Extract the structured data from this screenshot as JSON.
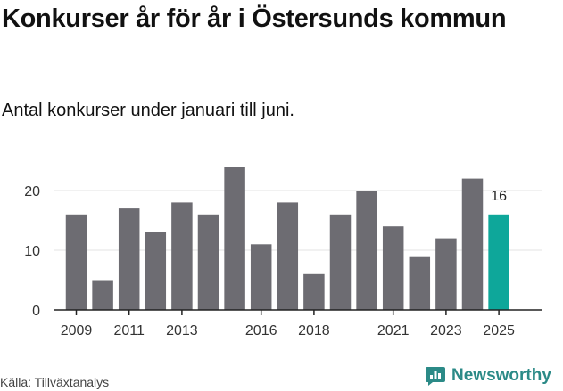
{
  "title": "Konkurser år för år i Östersunds kommun",
  "subtitle": "Antal konkurser under januari till juni.",
  "source": "Källa: Tillväxtanalys",
  "brand": "Newsworthy",
  "colors": {
    "bar": "#6d6c72",
    "highlight": "#0ea79a",
    "brand": "#2b8a87"
  },
  "chart_data": {
    "type": "bar",
    "categories": [
      "2009",
      "2010",
      "2011",
      "2012",
      "2013",
      "2014",
      "2015",
      "2016",
      "2017",
      "2018",
      "2019",
      "2020",
      "2021",
      "2022",
      "2023",
      "2024",
      "2025"
    ],
    "values": [
      16,
      5,
      17,
      13,
      18,
      16,
      24,
      11,
      18,
      6,
      16,
      20,
      14,
      9,
      12,
      22,
      16
    ],
    "highlight_category": "2025",
    "xtick_labels": [
      "2009",
      "2011",
      "2013",
      "2016",
      "2018",
      "2021",
      "2023",
      "2025"
    ],
    "yticks": [
      0,
      10,
      20
    ],
    "ylim": [
      0,
      24
    ],
    "grid": true,
    "data_labels": [
      {
        "category": "2025",
        "value": 16
      }
    ]
  }
}
